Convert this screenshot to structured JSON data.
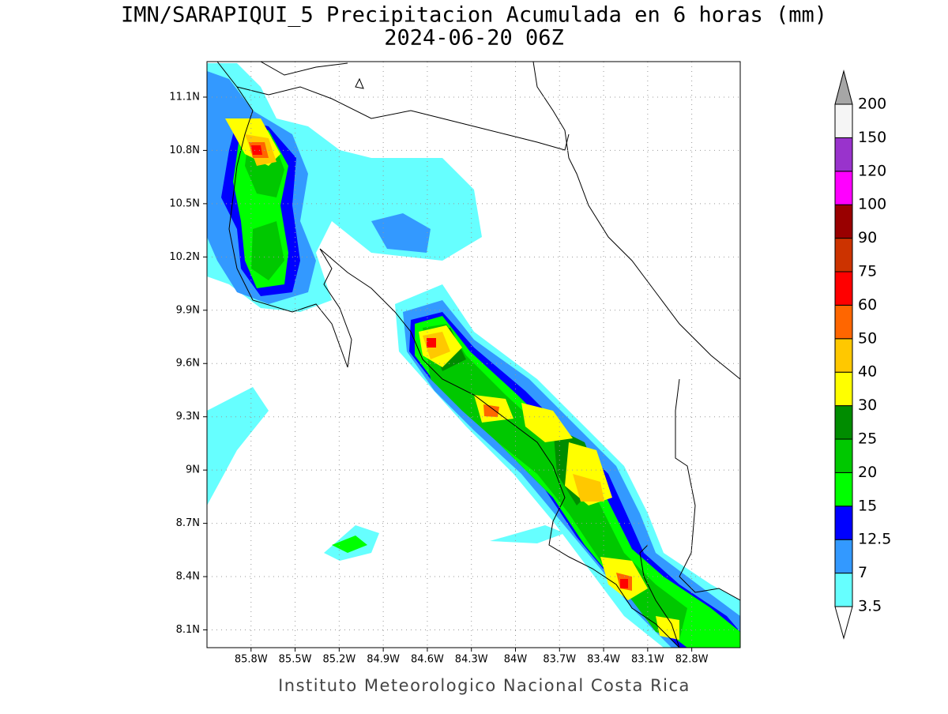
{
  "chart_data": {
    "type": "contour_map",
    "title": "IMN/SARAPIQUI_5 Precipitacion Acumulada en 6 horas (mm)",
    "subtitle": "2024-06-20 06Z",
    "credit": "Instituto Meteorologico Nacional Costa Rica",
    "xlim": [
      -86.1,
      -82.47
    ],
    "ylim": [
      8.0,
      11.3
    ],
    "xticks": [
      {
        "value": -85.8,
        "label": "85.8W"
      },
      {
        "value": -85.5,
        "label": "85.5W"
      },
      {
        "value": -85.2,
        "label": "85.2W"
      },
      {
        "value": -84.9,
        "label": "84.9W"
      },
      {
        "value": -84.6,
        "label": "84.6W"
      },
      {
        "value": -84.3,
        "label": "84.3W"
      },
      {
        "value": -84.0,
        "label": "84W"
      },
      {
        "value": -83.7,
        "label": "83.7W"
      },
      {
        "value": -83.4,
        "label": "83.4W"
      },
      {
        "value": -83.1,
        "label": "83.1W"
      },
      {
        "value": -82.8,
        "label": "82.8W"
      }
    ],
    "yticks": [
      {
        "value": 8.1,
        "label": "8.1N"
      },
      {
        "value": 8.4,
        "label": "8.4N"
      },
      {
        "value": 8.7,
        "label": "8.7N"
      },
      {
        "value": 9.0,
        "label": "9N"
      },
      {
        "value": 9.3,
        "label": "9.3N"
      },
      {
        "value": 9.6,
        "label": "9.6N"
      },
      {
        "value": 9.9,
        "label": "9.9N"
      },
      {
        "value": 10.2,
        "label": "10.2N"
      },
      {
        "value": 10.5,
        "label": "10.5N"
      },
      {
        "value": 10.8,
        "label": "10.8N"
      },
      {
        "value": 11.1,
        "label": "11.1N"
      }
    ],
    "grid": true,
    "colorbar": {
      "levels": [
        3.5,
        7,
        12.5,
        15,
        20,
        25,
        30,
        40,
        50,
        60,
        75,
        90,
        100,
        120,
        150,
        200
      ],
      "colors": [
        "#66ffff",
        "#3399ff",
        "#0000ff",
        "#00ff00",
        "#00c800",
        "#008c00",
        "#ffff00",
        "#ffc800",
        "#ff6600",
        "#ff0000",
        "#cc3300",
        "#990000",
        "#ff00ff",
        "#9933cc",
        "#f5f5f5"
      ],
      "under_color": "#ffffff",
      "over_color": "#a6a6a6"
    }
  }
}
